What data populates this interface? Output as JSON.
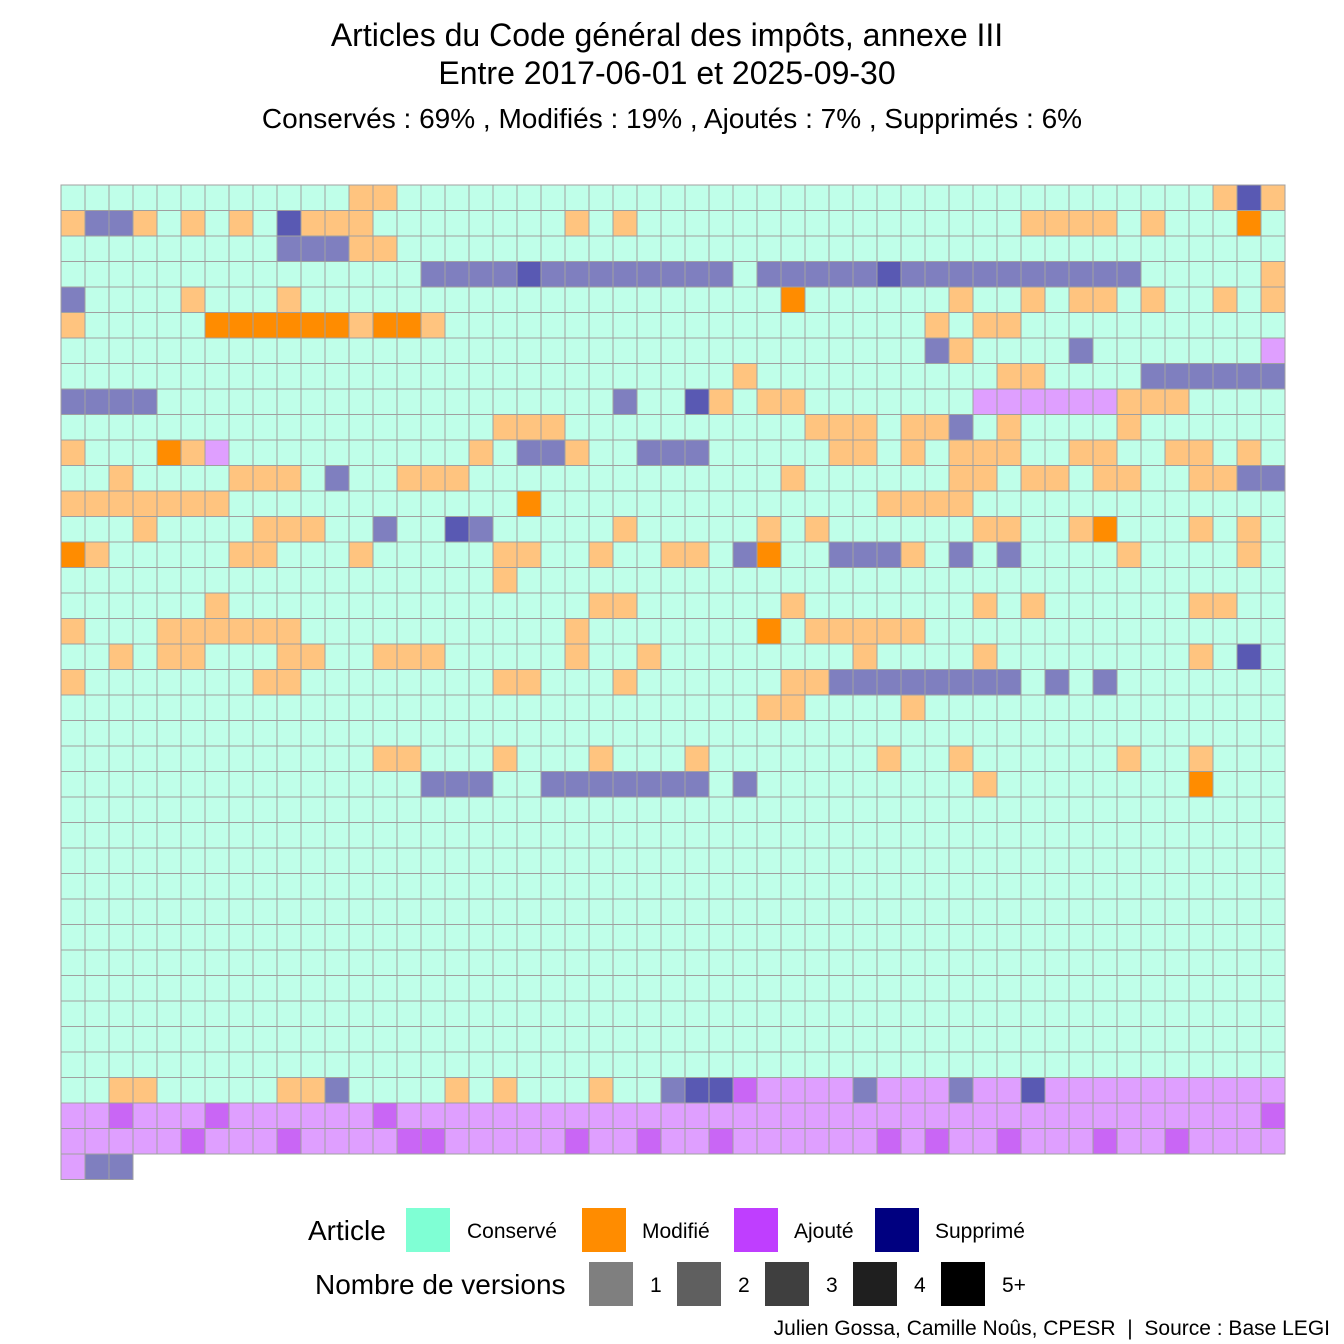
{
  "title_line1": "Articles du Code général des impôts, annexe III",
  "title_line2": "Entre 2017-06-01 et 2025-09-30",
  "subtitle": "Conservés :  69% , Modifiés :  19% , Ajoutés :  7% , Supprimés :  6%",
  "caption": "Julien Gossa, Camille Noûs, CPESR  |  Source : Base LEGI",
  "legend": {
    "article_title": "Article",
    "article_items": [
      {
        "label": "Conservé",
        "color": "#7fffd4"
      },
      {
        "label": "Modifié",
        "color": "#ff8c00"
      },
      {
        "label": "Ajouté",
        "color": "#bf3eff"
      },
      {
        "label": "Supprimé",
        "color": "#000080"
      }
    ],
    "versions_title": "Nombre de versions",
    "versions_items": [
      {
        "label": "1",
        "color": "#7f7f7f"
      },
      {
        "label": "2",
        "color": "#5f5f5f"
      },
      {
        "label": "3",
        "color": "#3f3f3f"
      },
      {
        "label": "4",
        "color": "#1f1f1f"
      },
      {
        "label": "5+",
        "color": "#000000"
      }
    ]
  },
  "chart_data": {
    "type": "heatmap",
    "columns": 51,
    "rows": 39,
    "grid_color": "#a0a0a0",
    "cell_codes": {
      "C": "Conservé, 1 version",
      "M": "Modifié, 2 versions",
      "m": "Modifié, 3+ versions",
      "D": "Supprimé, 2 versions",
      "d": "Supprimé, 3 versions",
      "A": "Ajouté, 1 version",
      "a": "Ajouté, 2 versions"
    },
    "cell_colors": {
      "C": "#bfffe9",
      "M": "#ffc47f",
      "m": "#ff8c00",
      "D": "#7f7fbf",
      "d": "#5959b3",
      "A": "#df9fff",
      "a": "#c966f5"
    },
    "rows_data": [
      "CCCCCCCCCCCCMMCCCCCCCCCCCCCCCCCCCCCCCCCCCCCCCCCCMdM",
      "MDDMCMCMCdMMMCCCCCCCCMCMCCCCCCCCCCCCCCCCMMMMCMCCCmC",
      "CCCCCCCCCDDDMMCCCCCCCCCCCCCCCCCCCCCCCCCCCCCCCCCCCCC",
      "CCCCCCCCCCCCCCCDDDDdDDDDDDDDCDDDDDdDDDDDDDDDDCCCCCM",
      "DCCCCMCCCMCCCCCCCCCCCCCCCCCCCCmCCCCCCMCCMCMMCMCCMCM",
      "MCCCCCmmmmmmMmmMCCCCCCCCCCCCCCCCCCCCMCMMCCCCCCCCCCC",
      "CCCCCCCCCCCCCCCCCCCCCCCCCCCCCCCCCCCCDMCCCCDCCCCCCCA",
      "CCCCCCCCCCCCCCCCCCCCCCCCCCCCMCCCCCCCCCCMMCCCCDDDDDDDDD",
      "DDDDCCCCCCCCCCCCCCCCCCCDCCdMCMMCCCCCCCAAAAAAMMMCCCCCC",
      "CCCCCCCCCCCCCCCCCCMMMCCCCCCCCCCMMMCMMDCMCCCCMCCCCCCC",
      "MCCCmMACCCCCCCCCCMCDDMCCDDDCCCCCMMCMCMMMCCMMCCMMCMC",
      "CCMCCCCMMMCDCCMMMCCCCCCCCCCCCCMCCCCCCMMCMMCMMCCMMDDMM",
      "MMMMMMMCCCCCCCCCCCCmCCCCCCCCCCCCCCMMMMCCCCCCCCCCCCCC",
      "CCCMCCCCMMMCCDCCdDCCCCCMCCCCCMCMCCCCCCMMCCMmCCCMCMCM",
      "mMCCCCCMMCCCMCCCCCMMCCMCCMMCDmCCDDDMCDCDCCCCMCCCCMCCC",
      "CCCCCCCCCCCCCCCCCCMCCCCCCCCCCCCCCCCCCCCCCCCCCCCCCCCCC",
      "CCCCCCMCCCCCCCCCCCCCCCMMCCCCCCMCCCCCCCMCMCCCCCCMMCCC",
      "MCCCMMMMMMCCCCCCCCCCCMCCCCCCCmCMMMMMCCCCCCCCCCCCCCCC",
      "CCMCMMCCCMMCCMMMCCCCCMCCMCCCCCCCCMCCCCMCCCCCCCCMCdCmM",
      "MCCCCCCCMMCCCCCCCCMMCCCMCCCCCCMMDDDDDDDDCDCDCCCCCCC",
      "CCCCCCCCCCCCCCCCCCCCCCCCCCCCCMMCCCCMCCCCCCCCCCCCCCC",
      "CCCCCCCCCCCCCCCCCCCCCCCCCCCCCCCCCCCCCCCCCCCCCCCCCCC",
      "CCCCCCCCCCCCCMMCCCMCCCMCCCMCCCCCCCMCCMCCCCCCMCCMCCC",
      "CCCCCCCCCCCCCCCDDDCCDDDDDDDCDCCCCCCCCCMCCCCCCCCmCCC",
      "CCCCCCCCCCCCCCCCCCCCCCCCCCCCCCCCCCCCCCCCCCCCCCCCCCC",
      "CCCCCCCCCCCCCCCCCCCCCCCCCCCCCCCCCCCCCCCCCCCCCCCCCCC",
      "CCCCCCCCCCCCCCCCCCCCCCCCCCCCCCCCCCCCCCCCCCCCCCCCCCC",
      "CCCCCCCCCCCCCCCCCCCCCCCCCCCCCCCCCCCCCCCCCCCCCCCCCCC",
      "CCCCCCCCCCCCCCCCCCCCCCCCCCCCCCCCCCCCCCCCCCCCCCCCCCC",
      "CCCCCCCCCCCCCCCCCCCCCCCCCCCCCCCCCCCCCCCCCCCCCCCCCCC",
      "CCCCCCCCCCCCCCCCCCCCCCCCCCCCCCCCCCCCCCCCCCCCCCCCCCC",
      "CCCCCCCCCCCCCCCCCCCCCCCCCCCCCCCCCCCCCCCCCCCCCCCCCCC",
      "CCCCCCCCCCCCCCCCCCCCCCCCCCCCCCCCCCCCCCCCCCCCCCCCCCC",
      "CCCCCCCCCCCCCCCCCCCCCCCCCCCCCCCCCCCCCCCCCCCCCCCCCCC",
      "CCCCCCCCCCCCCCCCCCCCCCCCCCCCCCCCCCCCCCCCCCCCCCCCCCC",
      "CCMMCCCCCMMDCCCCMCMCCCMCCDddaAAAADAAADAAdAAAAAAAAAAA",
      "AAaAAAaAAAAAAaAAAAAAAAAAAAAAAAAAAAAAAAAAAAAAAAAAAAa",
      "AAAAAaAAAaAAAAaaAAAAAaAAaAAaAAAAAAaAaAAaAAAaAAaAAAA",
      "ADD"
    ]
  }
}
